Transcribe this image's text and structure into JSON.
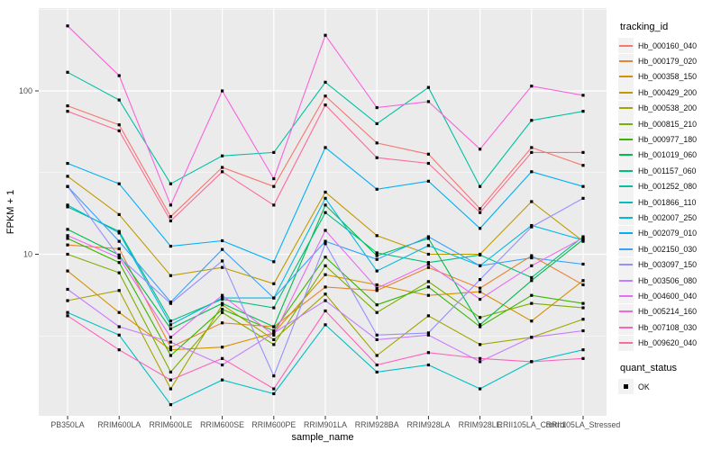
{
  "chart_data": {
    "type": "line",
    "title": "",
    "xlabel": "sample_name",
    "ylabel": "FPKM + 1",
    "y_scale": "log10",
    "ylim": [
      1.02,
      320
    ],
    "y_ticks": [
      100,
      10
    ],
    "y_minor": [
      316.2,
      31.62,
      3.162
    ],
    "grid": "on",
    "legend_position": "right",
    "legend_title": "tracking_id",
    "quant_legend": {
      "title": "quant_status",
      "items": [
        {
          "label": "OK",
          "marker": "black-square"
        }
      ]
    },
    "panel_bg": "#EBEBEB",
    "grid_color": "#FFFFFF",
    "axis_text_color": "#4D4D4D",
    "point_color": "#000000",
    "categories": [
      "PB350LA",
      "RRIM600LA",
      "RRIM600LE",
      "RRIM600SE",
      "RRIM600PE",
      "RRIM901LA",
      "RRIM928BA",
      "RRIM928LA",
      "RRIM928LE",
      "RRII105LA_Control",
      "RRII105LA_Stressed"
    ],
    "series": [
      {
        "name": "Hb_000160_040",
        "color": "#F8766D",
        "values": [
          81,
          62,
          17,
          34,
          26,
          93,
          48,
          41,
          19,
          45,
          35
        ]
      },
      {
        "name": "Hb_000179_020",
        "color": "#EA8331",
        "values": [
          11.4,
          10.8,
          2.7,
          3.8,
          3.6,
          6.3,
          6.0,
          8.3,
          6.2,
          9.8,
          6.5
        ]
      },
      {
        "name": "Hb_000358_150",
        "color": "#D89000",
        "values": [
          7.9,
          4.4,
          2.6,
          2.7,
          3.3,
          7.5,
          6.5,
          5.6,
          5.9,
          3.9,
          6.9
        ]
      },
      {
        "name": "Hb_000429_200",
        "color": "#C09B00",
        "values": [
          30,
          17.5,
          7.4,
          8.3,
          6.6,
          24,
          13,
          10,
          10,
          21,
          12
        ]
      },
      {
        "name": "Hb_000538_200",
        "color": "#A3A500",
        "values": [
          5.2,
          6.0,
          1.5,
          4.9,
          3.0,
          5.7,
          2.4,
          4.2,
          2.8,
          3.1,
          4.0
        ]
      },
      {
        "name": "Hb_000815_210",
        "color": "#7CAE00",
        "values": [
          10,
          7.7,
          1.9,
          4.4,
          2.8,
          8.5,
          4.4,
          6.8,
          4.1,
          5.0,
          4.7
        ]
      },
      {
        "name": "Hb_000977_180",
        "color": "#39B600",
        "values": [
          12.5,
          8.9,
          2.4,
          4.6,
          3.4,
          9.6,
          4.9,
          6.3,
          3.6,
          5.6,
          5.0
        ]
      },
      {
        "name": "Hb_001019_060",
        "color": "#00BB4E",
        "values": [
          14.2,
          9.9,
          3.5,
          5.0,
          3.6,
          20,
          9.8,
          12.5,
          3.7,
          6.9,
          12.3
        ]
      },
      {
        "name": "Hb_001157_060",
        "color": "#00BF7D",
        "values": [
          19.5,
          13.8,
          3.9,
          5.3,
          4.7,
          18,
          10.2,
          8.9,
          9.9,
          7.2,
          12.8
        ]
      },
      {
        "name": "Hb_001252_080",
        "color": "#00C1A3",
        "values": [
          130,
          88,
          27,
          40,
          42,
          113,
          63,
          105,
          26,
          66,
          75
        ]
      },
      {
        "name": "Hb_001866_110",
        "color": "#00BFC4",
        "values": [
          4.4,
          3.2,
          1.2,
          1.7,
          1.4,
          3.7,
          1.9,
          2.1,
          1.5,
          2.2,
          2.6
        ]
      },
      {
        "name": "Hb_002007_250",
        "color": "#00BAE0",
        "values": [
          20,
          13.5,
          3.7,
          5.4,
          5.4,
          22,
          7.9,
          11.3,
          8.5,
          15,
          12.2
        ]
      },
      {
        "name": "Hb_002079_010",
        "color": "#00B0F6",
        "values": [
          36,
          27,
          11.2,
          12.1,
          9.0,
          45,
          25,
          28,
          14.4,
          32,
          26
        ]
      },
      {
        "name": "Hb_002150_030",
        "color": "#35A2FF",
        "values": [
          26,
          12,
          5.1,
          10.7,
          5.4,
          12,
          9.3,
          12.8,
          8.5,
          9.5,
          8.7
        ]
      },
      {
        "name": "Hb_003097_150",
        "color": "#9590FF",
        "values": [
          26,
          9.6,
          5.0,
          9.1,
          1.8,
          11.6,
          3.2,
          3.3,
          7.0,
          14.7,
          22
        ]
      },
      {
        "name": "Hb_003506_080",
        "color": "#C77CFF",
        "values": [
          6.1,
          3.6,
          2.9,
          2.1,
          3.3,
          5.2,
          3.0,
          3.2,
          2.2,
          3.1,
          3.4
        ]
      },
      {
        "name": "Hb_004600_040",
        "color": "#E76BF3",
        "values": [
          13,
          9.5,
          3.1,
          5.6,
          3.2,
          14,
          6.2,
          8.7,
          5.3,
          8.5,
          12.6
        ]
      },
      {
        "name": "Hb_005214_160",
        "color": "#FA62DB",
        "values": [
          250,
          124,
          20,
          100,
          29,
          219,
          79,
          86,
          44,
          107,
          94
        ]
      },
      {
        "name": "Hb_007108_030",
        "color": "#FF62BC",
        "values": [
          4.2,
          2.6,
          1.7,
          2.3,
          1.5,
          4.5,
          2.1,
          2.5,
          2.3,
          2.2,
          2.3
        ]
      },
      {
        "name": "Hb_009620_040",
        "color": "#FF6A98",
        "values": [
          75,
          57,
          16,
          32,
          20,
          82,
          39,
          36,
          18,
          42,
          42
        ]
      }
    ]
  }
}
